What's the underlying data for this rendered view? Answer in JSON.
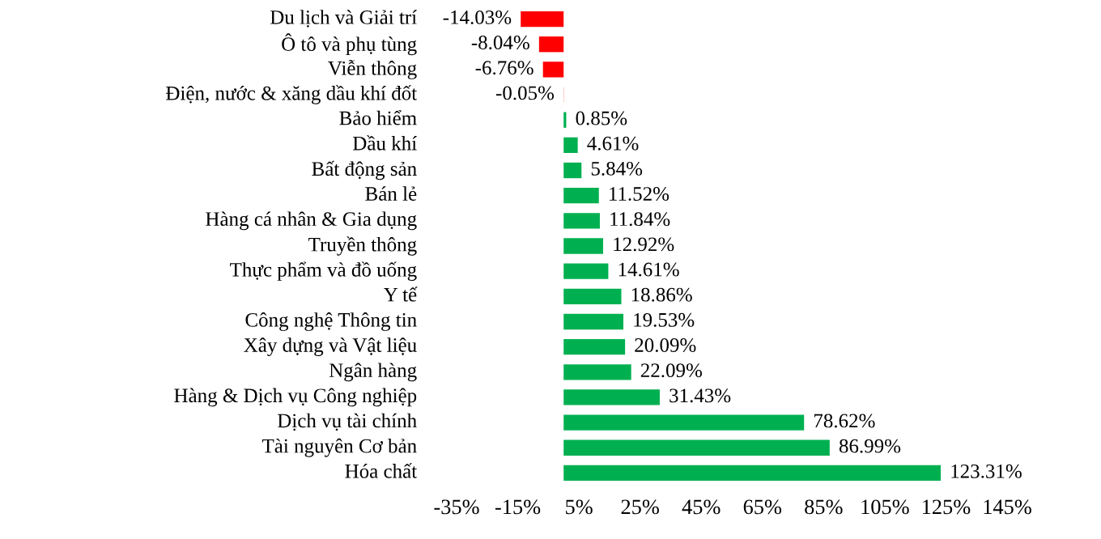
{
  "chart_data": {
    "type": "bar",
    "orientation": "horizontal",
    "categories": [
      "Du lịch và Giải trí",
      "Ô tô và phụ tùng",
      "Viễn thông",
      "Điện, nước & xăng dầu khí đốt",
      "Bảo hiểm",
      "Dầu khí",
      "Bất động sản",
      "Bán lẻ",
      "Hàng cá nhân & Gia dụng",
      "Truyền thông",
      "Thực phẩm và đồ uống",
      "Y tế",
      "Công nghệ Thông tin",
      "Xây dựng và Vật liệu",
      "Ngân hàng",
      "Hàng & Dịch vụ Công nghiệp",
      "Dịch vụ tài chính",
      "Tài nguyên Cơ bản",
      "Hóa chất"
    ],
    "values": [
      -14.03,
      -8.04,
      -6.76,
      -0.05,
      0.85,
      4.61,
      5.84,
      11.52,
      11.84,
      12.92,
      14.61,
      18.86,
      19.53,
      20.09,
      22.09,
      31.43,
      78.62,
      86.99,
      123.31
    ],
    "colors": [
      "#ff0000",
      "#ff0000",
      "#ff0000",
      "#ff0000",
      "#00b050",
      "#00b050",
      "#00b050",
      "#00b050",
      "#00b050",
      "#00b050",
      "#00b050",
      "#00b050",
      "#00b050",
      "#00b050",
      "#00b050",
      "#00b050",
      "#00b050",
      "#00b050",
      "#00b050"
    ],
    "value_labels": [
      "-14.03%",
      "-8.04%",
      "-6.76%",
      "-0.05%",
      "0.85%",
      "4.61%",
      "5.84%",
      "11.52%",
      "11.84%",
      "12.92%",
      "14.61%",
      "18.86%",
      "19.53%",
      "20.09%",
      "22.09%",
      "31.43%",
      "78.62%",
      "86.99%",
      "123.31%"
    ],
    "xlim": [
      -35,
      145
    ],
    "xticks": [
      {
        "value": -35,
        "label": "-35%"
      },
      {
        "value": -15,
        "label": "-15%"
      },
      {
        "value": 5,
        "label": "5%"
      },
      {
        "value": 25,
        "label": "25%"
      },
      {
        "value": 45,
        "label": "45%"
      },
      {
        "value": 65,
        "label": "65%"
      },
      {
        "value": 85,
        "label": "85%"
      },
      {
        "value": 105,
        "label": "105%"
      },
      {
        "value": 125,
        "label": "125%"
      },
      {
        "value": 145,
        "label": "145%"
      }
    ],
    "grid": false,
    "legend": false
  }
}
